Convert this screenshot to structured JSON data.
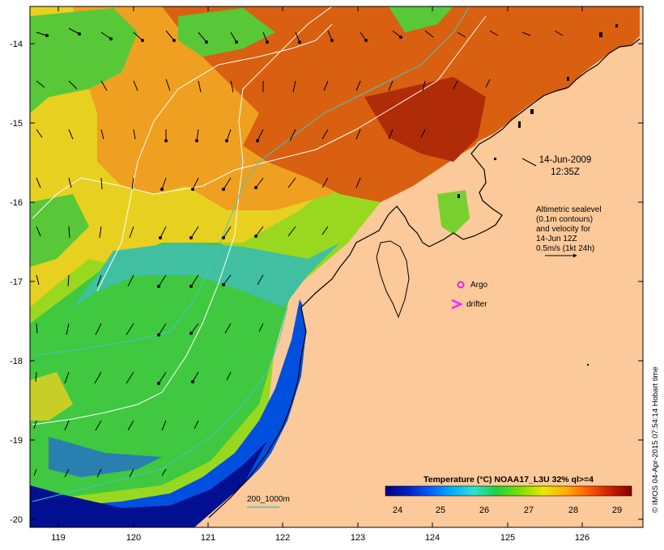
{
  "map": {
    "lon_ticks": [
      "119",
      "120",
      "121",
      "122",
      "123",
      "124",
      "125",
      "126"
    ],
    "lat_ticks": [
      "-14",
      "-15",
      "-16",
      "-17",
      "-18",
      "-19",
      "-20"
    ],
    "date_line1": "14-Jun-2009",
    "date_line2": "12:35Z",
    "sealevel_lines": [
      "Altimetric sealevel",
      "(0.1m contours)",
      "and velocity for",
      "14-Jun 12Z",
      "0.5m/s (1kt 24h)"
    ],
    "argo_label": "Argo",
    "drifter_label": "drifter",
    "bathy_label": "200_1000m",
    "credit": "© IMOS 04-Apr-2015 07:54:14 Hobart time",
    "colors": {
      "land": "#fcc99a",
      "argo": "#e020e0",
      "drifter": "#ff20ff",
      "contour": "#ffffff",
      "isobath": "#40c8c8"
    }
  },
  "colorbar": {
    "title": "Temperature (°C) NOAA17_L3U 32% ql>=4",
    "ticks": [
      "24",
      "25",
      "26",
      "27",
      "28",
      "29"
    ],
    "range": [
      23.4,
      29.4
    ],
    "stops": [
      "#000080",
      "#0020c0",
      "#0060ff",
      "#00b0ff",
      "#30e0d0",
      "#20d040",
      "#80e000",
      "#e8e800",
      "#ffb000",
      "#ff6000",
      "#d02000",
      "#800000"
    ]
  }
}
